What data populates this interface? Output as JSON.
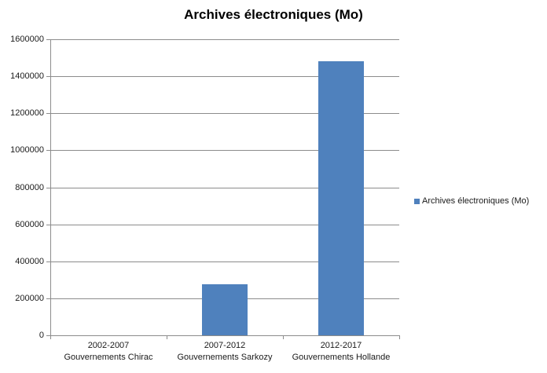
{
  "chart_data": {
    "type": "bar",
    "title": "Archives électroniques (Mo)",
    "categories": [
      "2002-2007 Gouvernements Chirac",
      "2007-2012 Gouvernements Sarkozy",
      "2012-2017 Gouvernements Hollande"
    ],
    "category_labels": [
      [
        "2002-2007",
        "Gouvernements Chirac"
      ],
      [
        "2007-2012",
        "Gouvernements Sarkozy"
      ],
      [
        "2012-2017",
        "Gouvernements Hollande"
      ]
    ],
    "series": [
      {
        "name": "Archives électroniques (Mo)",
        "values": [
          0,
          275000,
          1480000
        ]
      }
    ],
    "xlabel": "",
    "ylabel": "",
    "ylim": [
      0,
      1600000
    ],
    "ytick_step": 200000,
    "ytick_labels": [
      "0",
      "200000",
      "400000",
      "600000",
      "800000",
      "1000000",
      "1200000",
      "1400000",
      "1600000"
    ],
    "grid": true,
    "legend_position": "right",
    "colors": {
      "bar": "#4F81BD",
      "gridline": "#8C8C8C",
      "axis": "#8C8C8C",
      "text": "#1a1a1a",
      "title": "#000000",
      "background": "#FFFFFF"
    }
  }
}
